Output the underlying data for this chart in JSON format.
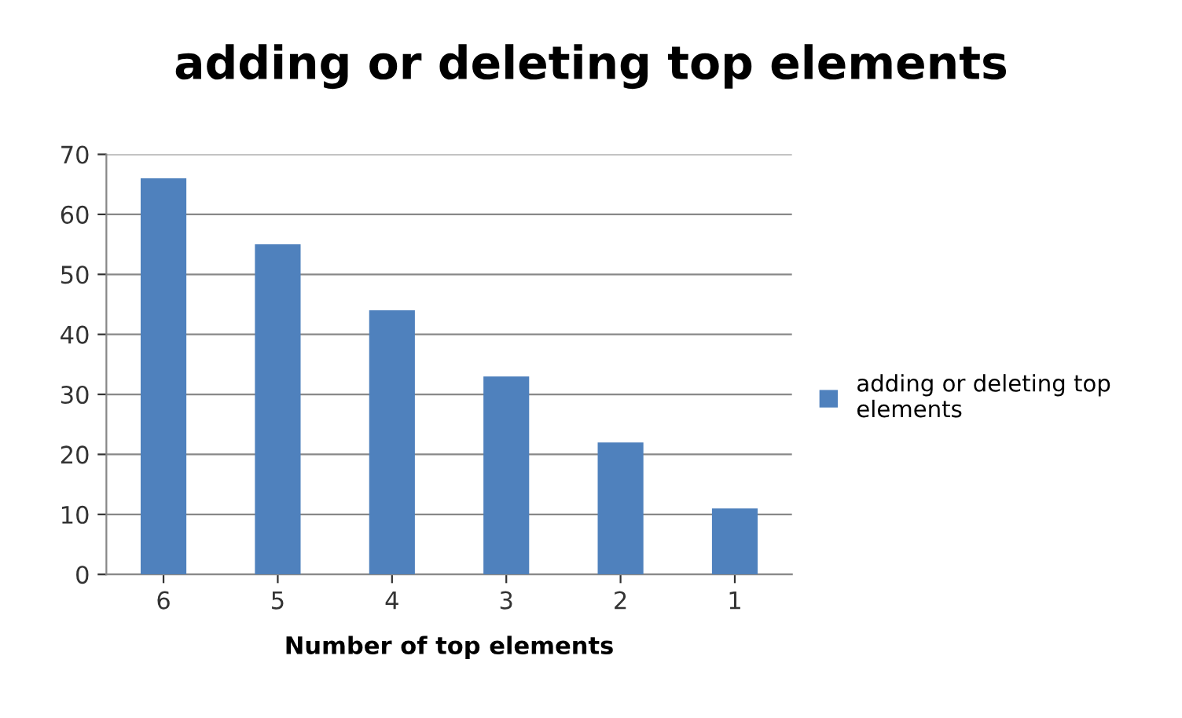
{
  "chart_data": {
    "type": "bar",
    "title": "adding or deleting top elements",
    "xlabel": "Number of top elements",
    "categories": [
      "6",
      "5",
      "4",
      "3",
      "2",
      "1"
    ],
    "series": [
      {
        "name": "adding or deleting top elements",
        "color": "#4f81bd",
        "values": [
          66,
          55,
          44,
          33,
          22,
          11
        ]
      }
    ],
    "ylim": [
      0,
      70
    ],
    "yticks": [
      0,
      10,
      20,
      30,
      40,
      50,
      60,
      70
    ],
    "grid": "y",
    "legend": "right"
  }
}
